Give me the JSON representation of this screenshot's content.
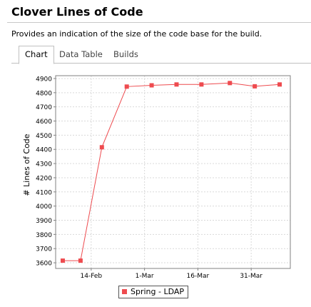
{
  "page": {
    "title": "Clover Lines of Code",
    "description": "Provides an indication of the size of the code base for the build."
  },
  "tabs": [
    {
      "label": "Chart",
      "active": true
    },
    {
      "label": "Data Table",
      "active": false
    },
    {
      "label": "Builds",
      "active": false
    }
  ],
  "colors": {
    "series": "#ee4b4f",
    "grid": "#d9d9d9",
    "axis": "#808080"
  },
  "chart_data": {
    "type": "line",
    "ylabel": "# Lines of Code",
    "xlabel": "",
    "ylim": [
      3560,
      4920
    ],
    "y_ticks": [
      3600,
      3700,
      3800,
      3900,
      4000,
      4100,
      4200,
      4300,
      4400,
      4500,
      4600,
      4700,
      4800,
      4900
    ],
    "x_range": [
      "2011-02-04",
      "2011-04-11"
    ],
    "x_ticks": [
      {
        "date": "2011-02-14",
        "label": "14-Feb"
      },
      {
        "date": "2011-03-01",
        "label": "1-Mar"
      },
      {
        "date": "2011-03-16",
        "label": "16-Mar"
      },
      {
        "date": "2011-03-31",
        "label": "31-Mar"
      }
    ],
    "grid": true,
    "legend_position": "bottom-center",
    "series": [
      {
        "name": "Spring - LDAP",
        "points": [
          {
            "x": "2011-02-06",
            "y": 3615
          },
          {
            "x": "2011-02-11",
            "y": 3615
          },
          {
            "x": "2011-02-17",
            "y": 4415
          },
          {
            "x": "2011-02-24",
            "y": 4843
          },
          {
            "x": "2011-03-03",
            "y": 4852
          },
          {
            "x": "2011-03-10",
            "y": 4858
          },
          {
            "x": "2011-03-17",
            "y": 4858
          },
          {
            "x": "2011-03-25",
            "y": 4868
          },
          {
            "x": "2011-04-01",
            "y": 4845
          },
          {
            "x": "2011-04-08",
            "y": 4858
          }
        ]
      }
    ]
  }
}
